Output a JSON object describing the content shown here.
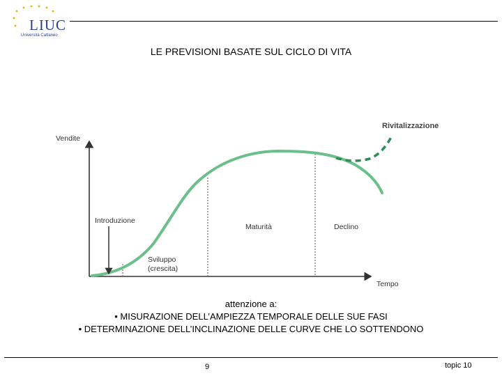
{
  "logo": {
    "name": "LIUC",
    "subtitle": "Università Cattaneo"
  },
  "title": "LE PREVISIONI BASATE SUL CICLO DI VITA",
  "diagram": {
    "y_axis_label": "Vendite",
    "x_axis_label": "Tempo",
    "phases": [
      "Introduzione",
      "Sviluppo",
      "(crescita)",
      "Maturità",
      "Declino"
    ],
    "revival_label": "Rivitalizzazione",
    "colors": {
      "curve": "#6bbf8a",
      "revival": "#2e8a57",
      "axis": "#333333"
    }
  },
  "notes": {
    "heading": "attenzione a:",
    "items": [
      "• MISURAZIONE DELL’AMPIEZZA TEMPORALE DELLE SUE FASI",
      "• DETERMINAZIONE DELL’INCLINAZIONE DELLE CURVE CHE LO SOTTENDONO"
    ]
  },
  "footer": {
    "page": "9",
    "topic": "topic 10"
  }
}
